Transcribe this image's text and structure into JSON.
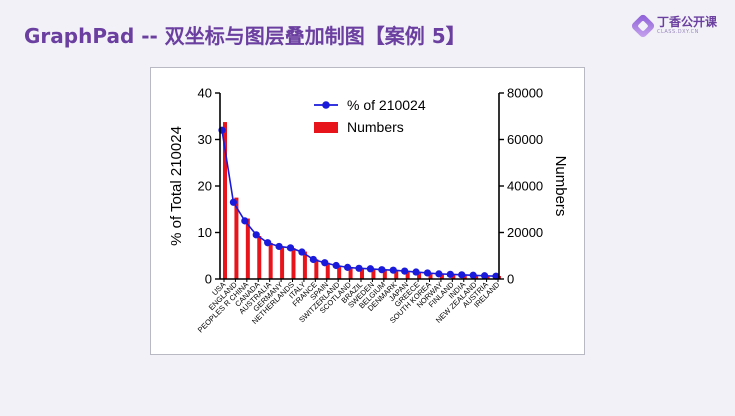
{
  "header": {
    "title": "GraphPad -- 双坐标与图层叠加制图【案例 5】",
    "logo_text": "丁香公开课",
    "logo_subtext": "CLASS.DXY.CN"
  },
  "chart_data": {
    "type": "bar",
    "ylabel": "% of Total 210024",
    "y2label": "Numbers",
    "ylim": [
      0,
      40
    ],
    "y2lim": [
      0,
      80000
    ],
    "yticks": [
      0,
      10,
      20,
      30,
      40
    ],
    "y2ticks": [
      0,
      20000,
      40000,
      60000,
      80000
    ],
    "legend_position": "top-center",
    "categories": [
      "USA",
      "ENGLAND",
      "PEOPLES R CHINA",
      "CANADA",
      "AUSTRALIA",
      "GERMANY",
      "NETHERLANDS",
      "ITALY",
      "FRANCE",
      "SPAIN",
      "SWITZERLAND",
      "SCOTLAND",
      "BRAZIL",
      "SWEDEN",
      "BELGIUM",
      "DENMARK",
      "JAPAN",
      "GREECE",
      "SOUTH KOREA",
      "NORWAY",
      "FINLAND",
      "INDIA",
      "NEW ZEALAND",
      "AUSTRIA",
      "IRELAND"
    ],
    "series": [
      {
        "name": "% of 210024",
        "kind": "line",
        "axis": "left",
        "color": "#1a1adb",
        "values": [
          32,
          16.5,
          12.5,
          9.5,
          7.8,
          7,
          6.7,
          5.8,
          4.2,
          3.5,
          2.9,
          2.5,
          2.3,
          2.2,
          2,
          1.9,
          1.7,
          1.5,
          1.3,
          1.1,
          1,
          0.9,
          0.8,
          0.7,
          0.6
        ]
      },
      {
        "name": "Numbers",
        "kind": "bar",
        "axis": "right",
        "color": "#e8141b",
        "values": [
          67500,
          35000,
          26000,
          18500,
          15500,
          13800,
          13300,
          11800,
          8500,
          7000,
          5800,
          5000,
          4700,
          4400,
          4000,
          3800,
          3400,
          3000,
          2600,
          2300,
          2100,
          1900,
          1700,
          1500,
          1300
        ]
      }
    ]
  }
}
